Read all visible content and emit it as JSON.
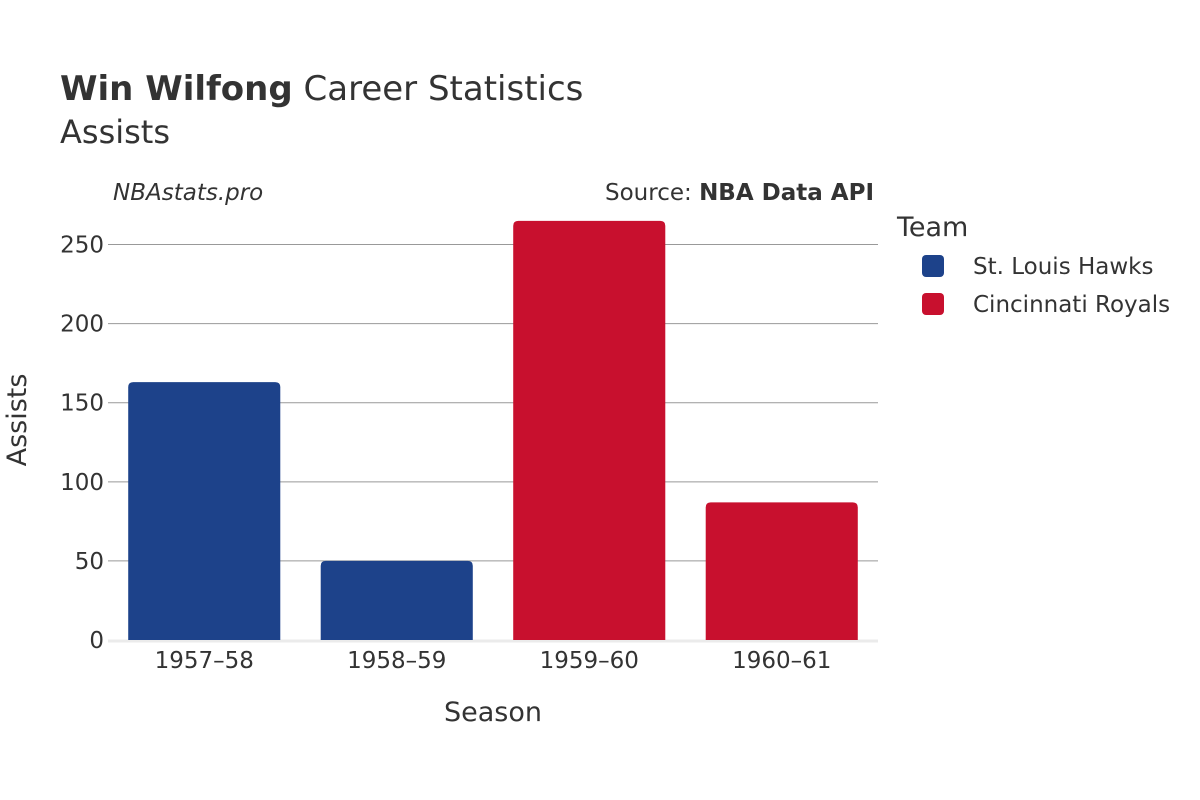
{
  "chart_data": {
    "type": "bar",
    "title_bold": "Win Wilfong",
    "title_rest": "Career Statistics",
    "subtitle": "Assists",
    "credit_left": "NBAstats.pro",
    "credit_source_prefix": "Source:",
    "credit_source_name": "NBA Data API",
    "xlabel": "Season",
    "ylabel": "Assists",
    "categories": [
      "1957–58",
      "1958–59",
      "1959–60",
      "1960–61"
    ],
    "values": [
      163,
      50,
      265,
      87
    ],
    "bar_teams": [
      "St. Louis Hawks",
      "St. Louis Hawks",
      "Cincinnati Royals",
      "Cincinnati Royals"
    ],
    "ylim": [
      0,
      275
    ],
    "yticks": [
      0,
      50,
      100,
      150,
      200,
      250
    ],
    "grid": true,
    "legend": {
      "title": "Team",
      "placement": "right",
      "items": [
        {
          "name": "St. Louis Hawks",
          "color": "#1d428a"
        },
        {
          "name": "Cincinnati Royals",
          "color": "#c8102e"
        }
      ]
    }
  }
}
